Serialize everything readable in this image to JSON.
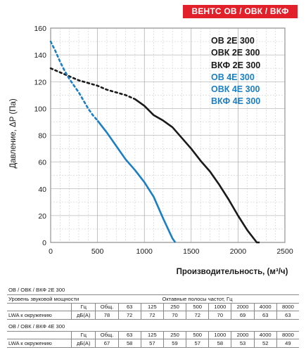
{
  "header": {
    "badge": "ВЕНТС ОВ / ОВК / ВКФ"
  },
  "colors": {
    "series_a": "#1a1a1a",
    "series_b": "#1b7fc4",
    "badge": "#e2202a"
  },
  "legend": {
    "series_a": [
      "ОВ 2Е 300",
      "ОВК 2Е 300",
      "ВКФ 2Е 300"
    ],
    "series_b": [
      "ОВ 4Е 300",
      "ОВК 4Е 300",
      "ВКФ 4Е 300"
    ]
  },
  "chart_data": {
    "type": "line",
    "xlabel": "Производительность, (м³/ч)",
    "ylabel": "Давление, ΔP (Па)",
    "xlim": [
      0,
      2500
    ],
    "ylim": [
      0,
      160
    ],
    "xticks": [
      0,
      500,
      1000,
      1500,
      2000,
      2500
    ],
    "yticks": [
      0,
      20,
      40,
      60,
      80,
      100,
      120,
      140,
      160
    ],
    "grid": true,
    "legend_position": "top-right",
    "series": [
      {
        "color": "#1a1a1a",
        "dashed_x": [
          0,
          100,
          200,
          300,
          400,
          500,
          600,
          700,
          800,
          900
        ],
        "dashed_y": [
          130,
          127,
          124,
          121,
          119,
          117,
          114,
          112,
          110,
          107
        ],
        "solid_x": [
          900,
          1000,
          1100,
          1200,
          1300,
          1400,
          1500,
          1600,
          1700,
          1800,
          1900,
          2000,
          2100,
          2200,
          2230
        ],
        "solid_y": [
          107,
          102,
          95,
          91,
          86,
          78,
          70,
          61,
          53,
          43,
          32,
          20,
          9,
          0,
          0
        ]
      },
      {
        "color": "#1b7fc4",
        "dashed_x": [
          0,
          50,
          100,
          150,
          200,
          250,
          300,
          350,
          400,
          450,
          500
        ],
        "dashed_y": [
          150,
          143,
          135,
          128,
          122,
          117,
          112,
          106,
          100,
          95,
          91
        ],
        "solid_x": [
          500,
          600,
          700,
          800,
          900,
          1000,
          1100,
          1200,
          1300,
          1330
        ],
        "solid_y": [
          91,
          82,
          72,
          62,
          54,
          45,
          34,
          18,
          3,
          0
        ]
      }
    ]
  },
  "tables": [
    {
      "title": "ОВ / ОВК / ВКФ 2Е 300",
      "r1_label": "Уровень звуковой мощности",
      "r1_header": "Октавные полосы частот, Гц",
      "hz_label": "Гц",
      "freqs": [
        "Общ.",
        "63",
        "125",
        "250",
        "500",
        "1000",
        "2000",
        "4000",
        "8000"
      ],
      "r3_label": "LWA к окружению",
      "unit": "дБ(А)",
      "values": [
        "78",
        "72",
        "72",
        "70",
        "72",
        "70",
        "69",
        "63",
        "63"
      ]
    },
    {
      "title": "ОВ / ОВК / ВКФ 4Е 300",
      "hz_label": "Гц",
      "freqs": [
        "Общ.",
        "63",
        "125",
        "250",
        "500",
        "1000",
        "2000",
        "4000",
        "8000"
      ],
      "r3_label": "LWA к окружению",
      "unit": "дБ(А)",
      "values": [
        "67",
        "58",
        "57",
        "59",
        "57",
        "58",
        "53",
        "52",
        "49"
      ]
    }
  ]
}
